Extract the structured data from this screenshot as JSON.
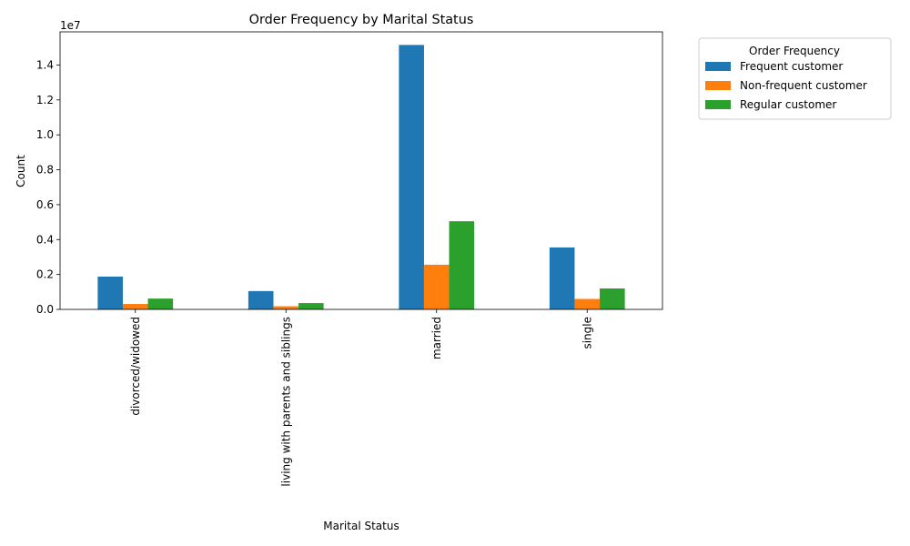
{
  "chart_data": {
    "type": "bar",
    "title": "Order Frequency by Marital Status",
    "xlabel": "Marital Status",
    "ylabel": "Count",
    "offset_label": "1e7",
    "categories": [
      "divorced/widowed",
      "living with parents and siblings",
      "married",
      "single"
    ],
    "series": [
      {
        "name": "Frequent customer",
        "color": "#1f77b4",
        "values": [
          1880000,
          1050000,
          15150000,
          3550000
        ]
      },
      {
        "name": "Non-frequent customer",
        "color": "#ff7f0e",
        "values": [
          310000,
          180000,
          2560000,
          600000
        ]
      },
      {
        "name": "Regular customer",
        "color": "#2ca02c",
        "values": [
          620000,
          360000,
          5050000,
          1200000
        ]
      }
    ],
    "ylim": [
      0,
      15900000
    ],
    "yticks": [
      0,
      2000000,
      4000000,
      6000000,
      8000000,
      10000000,
      12000000,
      14000000
    ],
    "ytick_labels": [
      "0.0",
      "0.2",
      "0.4",
      "0.6",
      "0.8",
      "1.0",
      "1.2",
      "1.4"
    ],
    "legend": {
      "title": "Order Frequency",
      "position": "outside-right"
    },
    "grid": false
  }
}
